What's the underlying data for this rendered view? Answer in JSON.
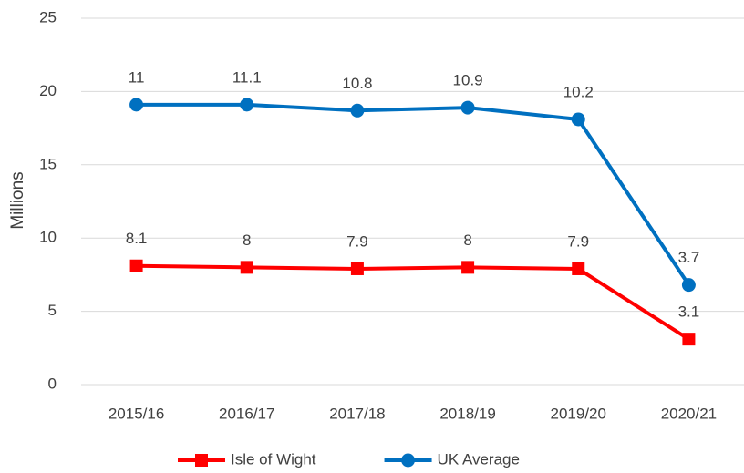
{
  "chart_data": {
    "type": "line",
    "stacked": true,
    "y_label": "Millions",
    "categories": [
      "2015/16",
      "2016/17",
      "2017/18",
      "2018/19",
      "2019/20",
      "2020/21"
    ],
    "series": [
      {
        "name": "Isle of Wight",
        "color": "#ff0000",
        "marker": "square",
        "values": [
          8.1,
          8,
          7.9,
          8,
          7.9,
          3.1
        ]
      },
      {
        "name": "UK Average",
        "color": "#0070c0",
        "marker": "circle",
        "values": [
          11,
          11.1,
          10.8,
          10.9,
          10.2,
          3.7
        ]
      }
    ],
    "ylim": [
      0,
      25
    ],
    "yticks": [
      0,
      5,
      10,
      15,
      20,
      25
    ],
    "grid": true,
    "legend": "bottom"
  }
}
